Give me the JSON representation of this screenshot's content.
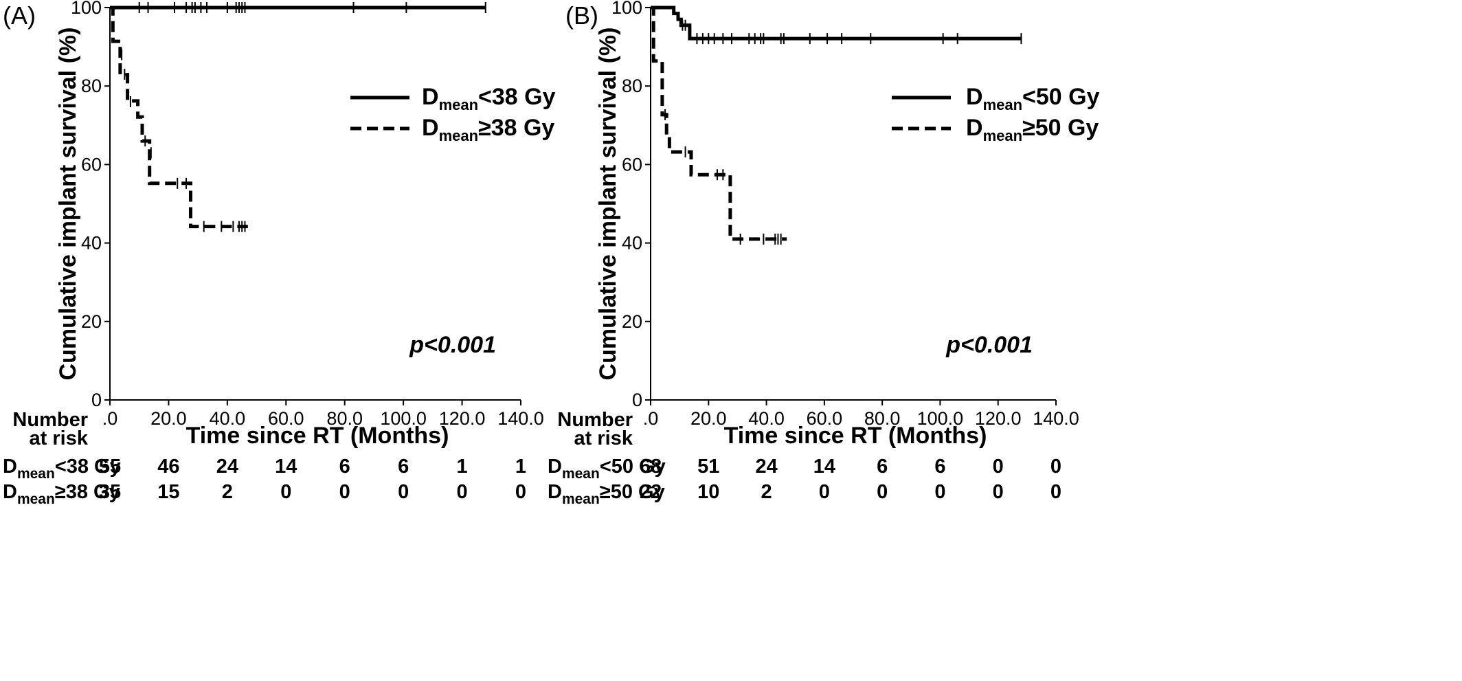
{
  "chart_data": [
    {
      "type": "line",
      "panel_label": "(A)",
      "xlabel": "Time since RT (Months)",
      "ylabel": "Cumulative implant survival (%)",
      "xlim": [
        0,
        140
      ],
      "ylim": [
        0,
        100
      ],
      "x_ticks": [
        ".0",
        "20.0",
        "40.0",
        "60.0",
        "80.0",
        "100.0",
        "120.0",
        "140.0"
      ],
      "y_ticks": [
        "0",
        "20",
        "40",
        "60",
        "80",
        "100"
      ],
      "p_value": "p<0.001",
      "legend_position": "top-right",
      "series": [
        {
          "label_main": "D",
          "label_sub": "mean",
          "label_rest": "<38 Gy",
          "style": "solid",
          "steps": [
            [
              0,
              100
            ],
            [
              128,
              100
            ]
          ],
          "censored": [
            [
              10,
              100
            ],
            [
              13,
              100
            ],
            [
              22,
              100
            ],
            [
              26,
              100
            ],
            [
              28,
              100
            ],
            [
              29,
              100
            ],
            [
              31,
              100
            ],
            [
              33,
              100
            ],
            [
              40,
              100
            ],
            [
              43,
              100
            ],
            [
              44,
              100
            ],
            [
              45,
              100
            ],
            [
              46,
              100
            ],
            [
              83,
              100
            ],
            [
              101,
              100
            ],
            [
              128,
              100
            ]
          ]
        },
        {
          "label_main": "D",
          "label_sub": "mean",
          "label_rest": "≥38 Gy",
          "style": "dashed",
          "steps": [
            [
              0,
              100
            ],
            [
              1,
              100
            ],
            [
              1,
              91.4
            ],
            [
              3.5,
              91.4
            ],
            [
              3.5,
              82.9
            ],
            [
              6,
              82.9
            ],
            [
              6,
              76.2
            ],
            [
              9.5,
              76.2
            ],
            [
              9.5,
              72.1
            ],
            [
              11,
              72.1
            ],
            [
              11,
              66
            ],
            [
              13.5,
              66
            ],
            [
              13.5,
              55.2
            ],
            [
              27.5,
              55.2
            ],
            [
              27.5,
              44.2
            ],
            [
              47,
              44.2
            ]
          ],
          "censored": [
            [
              4,
              88
            ],
            [
              5,
              83
            ],
            [
              7,
              76
            ],
            [
              12,
              66
            ],
            [
              14,
              63
            ],
            [
              23,
              55.2
            ],
            [
              26,
              55.2
            ],
            [
              32,
              44.2
            ],
            [
              38,
              44.2
            ],
            [
              42,
              44.2
            ],
            [
              44,
              44.2
            ],
            [
              45,
              44.2
            ],
            [
              46,
              44.2
            ]
          ]
        }
      ],
      "risk_table": {
        "header": [
          "Number",
          "at risk"
        ],
        "rows": [
          {
            "label_main": "D",
            "label_sub": "mean",
            "label_rest": "<38 Gy",
            "values": [
              "55",
              "46",
              "24",
              "14",
              "6",
              "6",
              "1",
              "1"
            ]
          },
          {
            "label_main": "D",
            "label_sub": "mean",
            "label_rest": "≥38 Gy",
            "values": [
              "35",
              "15",
              "2",
              "0",
              "0",
              "0",
              "0",
              "0"
            ]
          }
        ]
      }
    },
    {
      "type": "line",
      "panel_label": "(B)",
      "xlabel": "Time since RT (Months)",
      "ylabel": "Cumulative implant survival (%)",
      "xlim": [
        0,
        140
      ],
      "ylim": [
        0,
        100
      ],
      "x_ticks": [
        ".0",
        "20.0",
        "40.0",
        "60.0",
        "80.0",
        "100.0",
        "120.0",
        "140.0"
      ],
      "y_ticks": [
        "0",
        "20",
        "40",
        "60",
        "80",
        "100"
      ],
      "p_value": "p<0.001",
      "legend_position": "top-right",
      "series": [
        {
          "label_main": "D",
          "label_sub": "mean",
          "label_rest": "<50 Gy",
          "style": "solid",
          "steps": [
            [
              0,
              100
            ],
            [
              8,
              100
            ],
            [
              8,
              98.5
            ],
            [
              9.5,
              98.5
            ],
            [
              9.5,
              97
            ],
            [
              10.5,
              97
            ],
            [
              10.5,
              95.5
            ],
            [
              13.5,
              95.5
            ],
            [
              13.5,
              92.1
            ],
            [
              128,
              92.1
            ]
          ],
          "censored": [
            [
              11,
              95.5
            ],
            [
              12,
              95.5
            ],
            [
              16,
              92.1
            ],
            [
              18,
              92.1
            ],
            [
              20,
              92.1
            ],
            [
              22,
              92.1
            ],
            [
              25,
              92.1
            ],
            [
              28,
              92.1
            ],
            [
              34,
              92.1
            ],
            [
              36,
              92.1
            ],
            [
              38,
              92.1
            ],
            [
              39,
              92.1
            ],
            [
              45,
              92.1
            ],
            [
              46,
              92.1
            ],
            [
              55,
              92.1
            ],
            [
              61,
              92.1
            ],
            [
              66,
              92.1
            ],
            [
              76,
              92.1
            ],
            [
              101,
              92.1
            ],
            [
              106,
              92.1
            ],
            [
              128,
              92.1
            ]
          ]
        },
        {
          "label_main": "D",
          "label_sub": "mean",
          "label_rest": "≥50 Gy",
          "style": "dashed",
          "steps": [
            [
              0,
              100
            ],
            [
              1,
              100
            ],
            [
              1,
              86.4
            ],
            [
              4,
              86.4
            ],
            [
              4,
              72.7
            ],
            [
              5.5,
              72.7
            ],
            [
              5.5,
              67.5
            ],
            [
              6.5,
              67.5
            ],
            [
              6.5,
              63.2
            ],
            [
              14,
              63.2
            ],
            [
              14,
              57.4
            ],
            [
              27.5,
              57.4
            ],
            [
              27.5,
              41
            ],
            [
              47,
              41
            ]
          ],
          "censored": [
            [
              5,
              72.7
            ],
            [
              12,
              63.2
            ],
            [
              23,
              57.4
            ],
            [
              25,
              57.4
            ],
            [
              31,
              41
            ],
            [
              39,
              41
            ],
            [
              43,
              41
            ],
            [
              44,
              41
            ],
            [
              45,
              41
            ]
          ]
        }
      ],
      "risk_table": {
        "header": [
          "Number",
          "at risk"
        ],
        "rows": [
          {
            "label_main": "D",
            "label_sub": "mean",
            "label_rest": "<50 Gy",
            "values": [
              "68",
              "51",
              "24",
              "14",
              "6",
              "6",
              "0",
              "0"
            ]
          },
          {
            "label_main": "D",
            "label_sub": "mean",
            "label_rest": "≥50 Gy",
            "values": [
              "22",
              "10",
              "2",
              "0",
              "0",
              "0",
              "0",
              "0"
            ]
          }
        ]
      }
    }
  ]
}
